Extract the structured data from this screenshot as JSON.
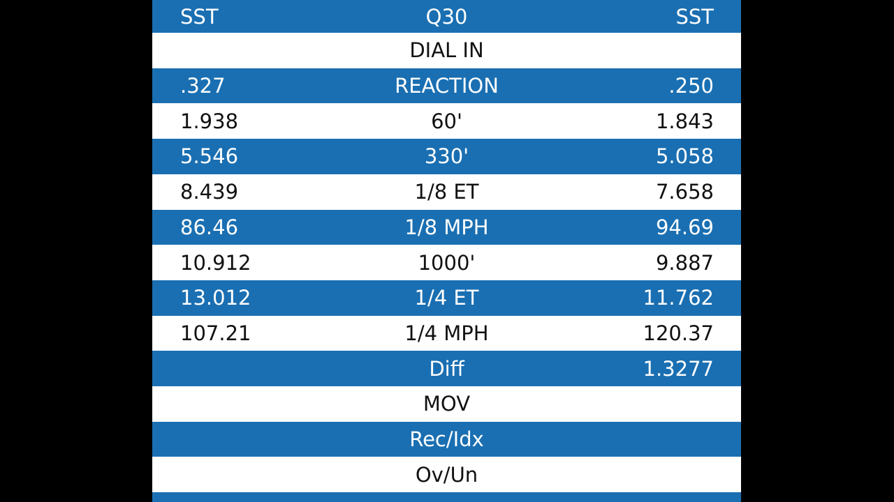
{
  "table": {
    "rows": [
      {
        "left": "SST",
        "label": "Q30",
        "right": "SST"
      },
      {
        "label": "DIAL IN"
      },
      {
        "left": ".327",
        "label": "REACTION",
        "right": ".250"
      },
      {
        "left": "1.938",
        "label": "60'",
        "right": "1.843"
      },
      {
        "left": "5.546",
        "label": "330'",
        "right": "5.058"
      },
      {
        "left": "8.439",
        "label": "1/8 ET",
        "right": "7.658"
      },
      {
        "left": "86.46",
        "label": "1/8 MPH",
        "right": "94.69"
      },
      {
        "left": "10.912",
        "label": "1000'",
        "right": "9.887"
      },
      {
        "left": "13.012",
        "label": "1/4 ET",
        "right": "11.762"
      },
      {
        "left": "107.21",
        "label": "1/4 MPH",
        "right": "120.37"
      },
      {
        "label": "Diff",
        "right": "1.3277"
      },
      {
        "label": "MOV"
      },
      {
        "label": "Rec/Idx"
      },
      {
        "label": "Ov/Un"
      }
    ]
  }
}
